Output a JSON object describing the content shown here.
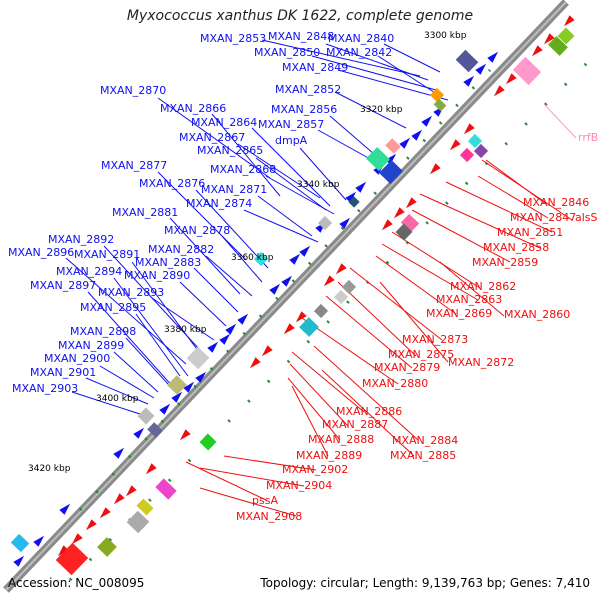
{
  "title": "Myxococcus xanthus DK 1622, complete genome",
  "accession": "Accession: NC_008095",
  "summary": "Topology: circular; Length: 9,139,763 bp; Genes: 7,410",
  "colors": {
    "left_gene": "#1010ee",
    "right_gene": "#ee1010",
    "other_label": "#ff88bb",
    "backbone": "#888888",
    "tick_green": "#2a8a2a"
  },
  "kbp_ticks": [
    "3300 kbp",
    "3320 kbp",
    "3340 kbp",
    "3360 kbp",
    "3380 kbp",
    "3400 kbp",
    "3420 kbp"
  ],
  "left_labels": [
    "MXAN_2853",
    "MXAN_2848",
    "MXAN_2840",
    "MXAN_2850",
    "MXAN_2842",
    "MXAN_2849",
    "MXAN_2852",
    "MXAN_2870",
    "MXAN_2866",
    "MXAN_2856",
    "MXAN_2864",
    "MXAN_2857",
    "MXAN_2867",
    "dmpA",
    "MXAN_2865",
    "MXAN_2868",
    "MXAN_2877",
    "MXAN_2876",
    "MXAN_2871",
    "MXAN_2874",
    "MXAN_2881",
    "MXAN_2878",
    "MXAN_2892",
    "MXAN_2882",
    "MXAN_2896",
    "MXAN_2891",
    "MXAN_2883",
    "MXAN_2894",
    "MXAN_2890",
    "MXAN_2897",
    "MXAN_2893",
    "MXAN_2895",
    "MXAN_2898",
    "MXAN_2899",
    "MXAN_2900",
    "MXAN_2901",
    "MXAN_2903"
  ],
  "right_labels": [
    "MXAN_2846",
    "MXAN_2847",
    "alsS",
    "MXAN_2851",
    "MXAN_2858",
    "MXAN_2859",
    "MXAN_2862",
    "MXAN_2863",
    "MXAN_2869",
    "MXAN_2860",
    "MXAN_2873",
    "MXAN_2875",
    "MXAN_2872",
    "MXAN_2879",
    "MXAN_2880",
    "MXAN_2886",
    "MXAN_2887",
    "MXAN_2884",
    "MXAN_2888",
    "MXAN_2885",
    "MXAN_2889",
    "MXAN_2902",
    "MXAN_2904",
    "pssA",
    "MXAN_2908"
  ],
  "other_labels": [
    "rrfB"
  ]
}
